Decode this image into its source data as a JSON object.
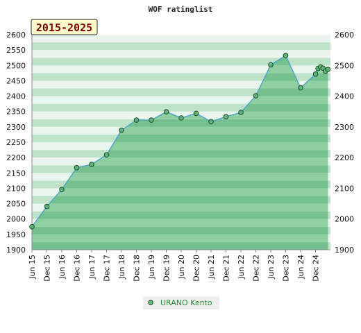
{
  "chart_data": {
    "type": "area",
    "title": "WOF ratinglist",
    "period_label": "2015-2025",
    "xlabel": "",
    "ylabel": "",
    "ylim": [
      1900,
      2600
    ],
    "y_ticks": [
      1900,
      1950,
      2000,
      2050,
      2100,
      2150,
      2200,
      2250,
      2300,
      2350,
      2400,
      2450,
      2500,
      2550,
      2600
    ],
    "right_y_ticks": [
      1900,
      2000,
      2100,
      2200,
      2300,
      2400,
      2500,
      2600
    ],
    "x_tick_labels": [
      "Jun 15",
      "Dec 15",
      "Jun 16",
      "Dec 16",
      "Jun 17",
      "Dec 17",
      "Jun 18",
      "Dec 18",
      "Jun 19",
      "Dec 19",
      "Jun 20",
      "Dec 20",
      "Jun 21",
      "Dec 21",
      "Jun 22",
      "Dec 22",
      "Jun 23",
      "Dec 23",
      "Jun 24",
      "Dec 24"
    ],
    "grid": false,
    "legend_position": "bottom-center",
    "colors": {
      "line": "#4aa3c8",
      "marker_fill": "#5fb27a",
      "marker_edge": "#1e4d2b",
      "fill_band_dark": "#76c08f",
      "fill_band_light": "#8fcfa2",
      "bg_band_dark": "#bfe3c9",
      "bg_band_light": "#eaf6ed",
      "legend_bg": "#eeeeee",
      "period_bg": "#fffccc"
    },
    "series": [
      {
        "name": "URANO Kento",
        "points": [
          {
            "x": "2015-06",
            "y": 1975
          },
          {
            "x": "2015-12",
            "y": 2041
          },
          {
            "x": "2016-06",
            "y": 2096
          },
          {
            "x": "2016-12",
            "y": 2167
          },
          {
            "x": "2017-06",
            "y": 2178
          },
          {
            "x": "2017-12",
            "y": 2209
          },
          {
            "x": "2018-06",
            "y": 2289
          },
          {
            "x": "2018-12",
            "y": 2322
          },
          {
            "x": "2019-06",
            "y": 2322
          },
          {
            "x": "2019-12",
            "y": 2349
          },
          {
            "x": "2020-06",
            "y": 2329
          },
          {
            "x": "2020-12",
            "y": 2344
          },
          {
            "x": "2021-06",
            "y": 2317
          },
          {
            "x": "2021-12",
            "y": 2333
          },
          {
            "x": "2022-06",
            "y": 2347
          },
          {
            "x": "2022-12",
            "y": 2401
          },
          {
            "x": "2023-06",
            "y": 2502
          },
          {
            "x": "2023-12",
            "y": 2532
          },
          {
            "x": "2024-06",
            "y": 2427
          },
          {
            "x": "2024-12",
            "y": 2472
          },
          {
            "x": "2025-01",
            "y": 2490
          },
          {
            "x": "2025-02",
            "y": 2495
          },
          {
            "x": "2025-03",
            "y": 2491
          },
          {
            "x": "2025-04",
            "y": 2481
          },
          {
            "x": "2025-05",
            "y": 2487
          }
        ]
      }
    ]
  }
}
